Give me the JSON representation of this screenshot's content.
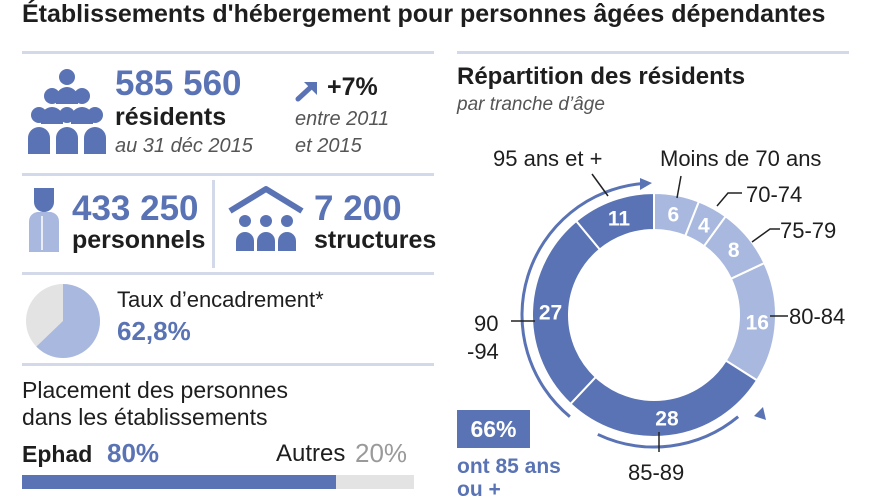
{
  "page_title": "Établissements d'hébergement pour personnes âgées dépendantes",
  "colors": {
    "accent": "#5a73b4",
    "light_accent": "#a9b8de",
    "rule": "#d3d9e8",
    "grey": "#e3e3e3"
  },
  "residents": {
    "icon": "people-group-icon",
    "value": "585 560",
    "label": "résidents",
    "date": "au 31 déc 2015",
    "trend_icon": "arrow-up-right-icon",
    "trend_value": "+7%",
    "trend_period_line1": "entre 2011",
    "trend_period_line2": "et 2015"
  },
  "staff": {
    "icon": "nurse-icon",
    "value": "433 250",
    "label": "personnels"
  },
  "structures": {
    "icon": "house-people-icon",
    "value": "7 200",
    "label": "structures"
  },
  "staffing": {
    "label": "Taux d’encadrement*",
    "value": "62,8%",
    "fraction": 0.628
  },
  "placement": {
    "title_line1": "Placement des personnes",
    "title_line2": "dans les établissements",
    "ephad_label": "Ephad",
    "ephad_value": "80%",
    "other_label": "Autres",
    "other_value": "20%",
    "ephad_fraction": 0.8
  },
  "chart_data": {
    "type": "pie",
    "title": "Répartition des résidents",
    "subtitle": "par tranche d’âge",
    "categories": [
      "Moins de 70 ans",
      "70-74",
      "75-79",
      "80-84",
      "85-89",
      "90-94",
      "95 ans et +"
    ],
    "values": [
      6,
      4,
      8,
      16,
      28,
      27,
      11
    ],
    "label_90_94_line1": "90",
    "label_90_94_line2": "-94",
    "highlight_value": "66%",
    "highlight_text_line1": "ont 85 ans",
    "highlight_text_line2": "ou +"
  }
}
